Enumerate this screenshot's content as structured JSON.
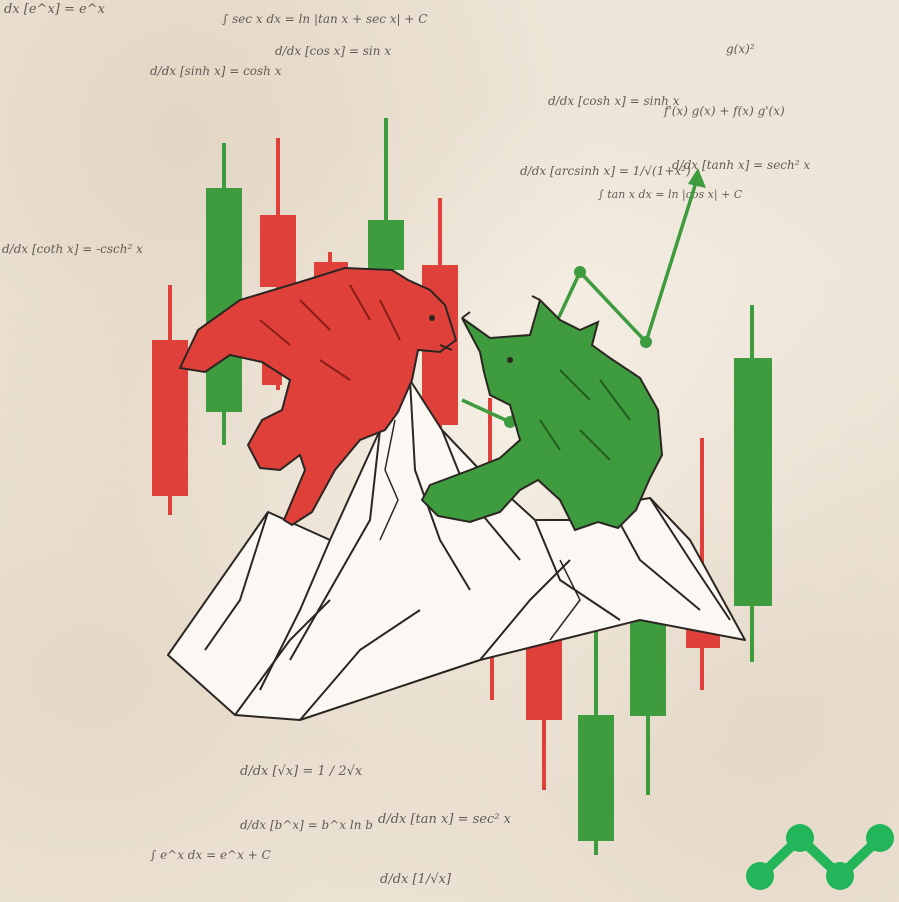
{
  "scene": "bull vs bear on mountain peaks over candlestick chart",
  "colors": {
    "bull_green": "#3e9b3e",
    "bear_red": "#e0403a",
    "paper": "#eee5d8",
    "ink": "#2b2622",
    "logo_green": "#22b559"
  },
  "formulas": {
    "f1": "dx [e^x] = e^x",
    "f2": "∫ sec x dx = ln |tan x + sec x| + C",
    "f3": "d/dx [sinh x] = cosh x",
    "f4": "d/dx [cos x] = sin x",
    "f5": "d/dx [cosh x] = sinh x",
    "f6": "d/dx [arcsinh x] = 1/√(1+x²)",
    "f7": "d/dx [tanh x] = sech² x",
    "f8": "∫ tan x dx = ln |cos x| + C",
    "f9": "f'(x) g(x) + f(x) g'(x)",
    "f10": "g(x)²",
    "f11": "d/dx [coth x] = -csch² x",
    "f12": "d/dx [√x] = 1 / 2√x",
    "f13": "d/dx [b^x] = b^x ln b",
    "f14": "d/dx [tan x] = sec² x",
    "f15": "∫ e^x dx = e^x + C",
    "f16": "d/dx [1/√x]"
  },
  "icons": {
    "logo": "trend-line-logo-icon"
  }
}
